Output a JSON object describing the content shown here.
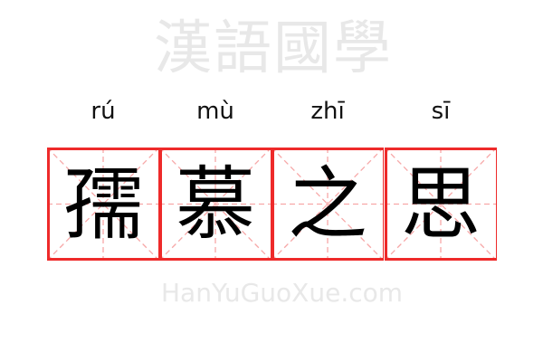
{
  "idiom": [
    {
      "pinyin": "rú",
      "char": "孺"
    },
    {
      "pinyin": "mù",
      "char": "慕"
    },
    {
      "pinyin": "zhī",
      "char": "之"
    },
    {
      "pinyin": "sī",
      "char": "思"
    }
  ],
  "watermark": {
    "chinese": "漢語國學",
    "latin": "HanYuGuoXue.com"
  },
  "colors": {
    "border": "#ee2a2a",
    "guide": "#f7a8a8",
    "text": "#000000"
  }
}
